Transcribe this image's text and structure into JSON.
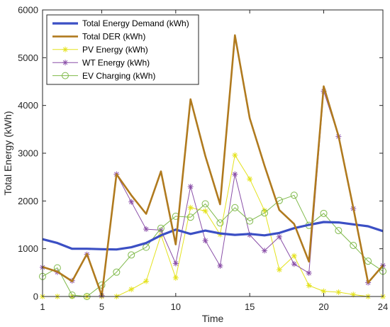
{
  "chart_data": {
    "type": "line",
    "title": "",
    "xlabel": "Time",
    "ylabel": "Total Energy (kWh)",
    "xlim": [
      1,
      24
    ],
    "ylim": [
      0,
      6000
    ],
    "xticks": [
      1,
      5,
      10,
      15,
      20,
      24
    ],
    "yticks": [
      0,
      1000,
      2000,
      3000,
      4000,
      5000,
      6000
    ],
    "grid": false,
    "legend_position": "top-left",
    "x": [
      1,
      2,
      3,
      4,
      5,
      6,
      7,
      8,
      9,
      10,
      11,
      12,
      13,
      14,
      15,
      16,
      17,
      18,
      19,
      20,
      21,
      22,
      23,
      24
    ],
    "series": [
      {
        "name": "Total Energy Demand (kWh)",
        "color": "#3b4fc4",
        "marker": "none",
        "width": 3.2,
        "values": [
          1200,
          1120,
          1000,
          1000,
          990,
          985,
          1030,
          1120,
          1280,
          1400,
          1310,
          1380,
          1320,
          1290,
          1310,
          1280,
          1330,
          1430,
          1500,
          1560,
          1550,
          1510,
          1470,
          1370
        ]
      },
      {
        "name": "Total DER (kWh)",
        "color": "#b07a1e",
        "marker": "none",
        "width": 2.6,
        "values": [
          620,
          520,
          320,
          890,
          20,
          2560,
          2120,
          1730,
          2620,
          1090,
          4130,
          2940,
          1930,
          5470,
          3730,
          2740,
          1810,
          1520,
          730,
          4400,
          3360,
          1850,
          290,
          650
        ]
      },
      {
        "name": "PV Energy (kWh)",
        "color": "#e4e21d",
        "marker": "star",
        "width": 1,
        "values": [
          0,
          0,
          0,
          0,
          0,
          0,
          150,
          320,
          1290,
          390,
          1860,
          1790,
          1300,
          2960,
          2460,
          1800,
          560,
          850,
          230,
          110,
          90,
          40,
          0,
          0
        ]
      },
      {
        "name": "WT Energy (kWh)",
        "color": "#8a4fa8",
        "marker": "star",
        "width": 1,
        "values": [
          610,
          510,
          330,
          880,
          20,
          2560,
          1980,
          1410,
          1390,
          690,
          2300,
          1170,
          640,
          2560,
          1290,
          960,
          1250,
          680,
          490,
          4300,
          3350,
          1840,
          290,
          650
        ]
      },
      {
        "name": "EV Charging (kWh)",
        "color": "#7fb94a",
        "marker": "circle",
        "width": 1,
        "values": [
          420,
          600,
          30,
          0,
          240,
          510,
          870,
          1030,
          1430,
          1680,
          1660,
          1940,
          1540,
          1860,
          1580,
          1750,
          2010,
          2120,
          1490,
          1740,
          1380,
          1070,
          740,
          530
        ]
      }
    ]
  }
}
